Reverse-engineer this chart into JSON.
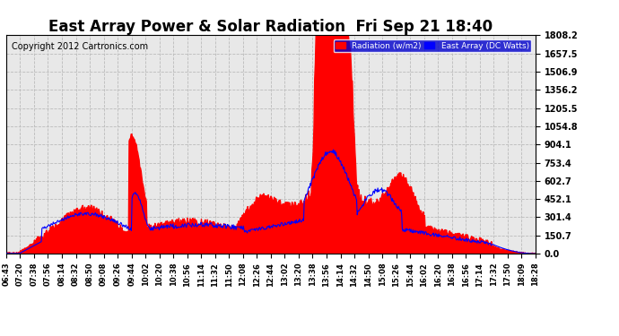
{
  "title": "East Array Power & Solar Radiation  Fri Sep 21 18:40",
  "copyright": "Copyright 2012 Cartronics.com",
  "legend_radiation": "Radiation (w/m2)",
  "legend_east": "East Array (DC Watts)",
  "legend_radiation_color": "#ff0000",
  "legend_east_color": "#0000ff",
  "legend_bg": "#0000cc",
  "yticks": [
    0.0,
    150.7,
    301.4,
    452.1,
    602.7,
    753.4,
    904.1,
    1054.8,
    1205.5,
    1356.2,
    1506.9,
    1657.5,
    1808.2
  ],
  "ylim": [
    0.0,
    1808.2
  ],
  "bg_color": "#ffffff",
  "plot_bg_color": "#e8e8e8",
  "grid_color": "#bbbbbb",
  "title_fontsize": 12,
  "copyright_fontsize": 7,
  "xtick_labels": [
    "06:43",
    "07:20",
    "07:38",
    "07:56",
    "08:14",
    "08:32",
    "08:50",
    "09:08",
    "09:26",
    "09:44",
    "10:02",
    "10:20",
    "10:38",
    "10:56",
    "11:14",
    "11:32",
    "11:50",
    "12:08",
    "12:26",
    "12:44",
    "13:02",
    "13:20",
    "13:38",
    "13:56",
    "14:14",
    "14:32",
    "14:50",
    "15:08",
    "15:26",
    "15:44",
    "16:02",
    "16:20",
    "16:38",
    "16:56",
    "17:14",
    "17:32",
    "17:50",
    "18:09",
    "18:28"
  ]
}
